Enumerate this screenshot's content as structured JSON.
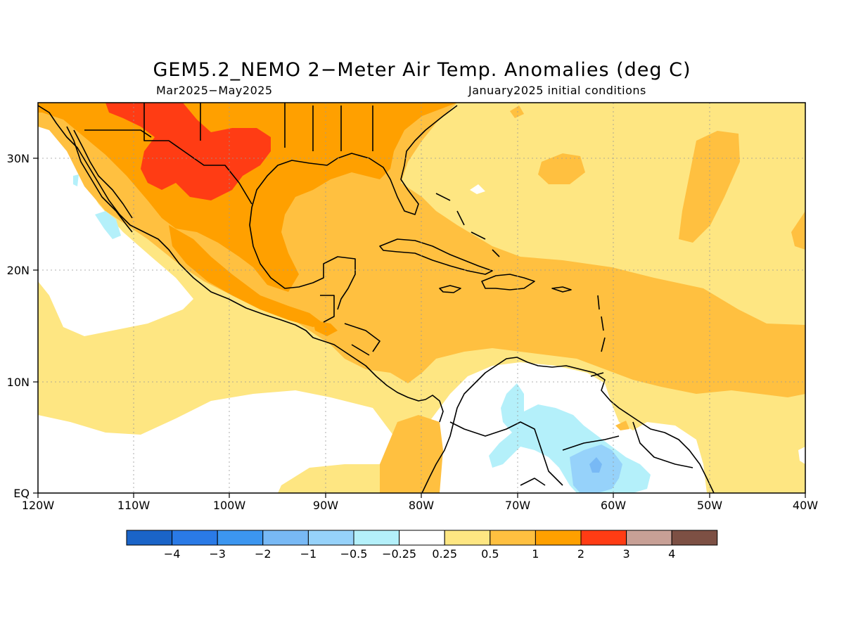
{
  "title": "GEM5.2_NEMO 2−Meter Air Temp. Anomalies (deg C)",
  "subtitle_left": "Mar2025−May2025",
  "subtitle_right": "January2025 initial conditions",
  "map": {
    "lon_range": [
      -120,
      -40
    ],
    "lat_range": [
      0,
      35
    ],
    "lon_labels": [
      "120W",
      "110W",
      "100W",
      "90W",
      "80W",
      "70W",
      "60W",
      "50W",
      "40W"
    ],
    "lat_labels": [
      "EQ",
      "10N",
      "20N",
      "30N"
    ]
  },
  "colorbar": {
    "labels": [
      "−4",
      "−3",
      "−2",
      "−1",
      "−0.5",
      "−0.25",
      "0.25",
      "0.5",
      "1",
      "2",
      "3",
      "4"
    ],
    "colors": [
      "#1a64c8",
      "#2a7ae6",
      "#3c96f0",
      "#78b9f5",
      "#96d2fa",
      "#b4f0fa",
      "#ffffff",
      "#fee682",
      "#ffc040",
      "#ffa000",
      "#ff3c14",
      "#c8a096",
      "#7d5044"
    ]
  }
}
